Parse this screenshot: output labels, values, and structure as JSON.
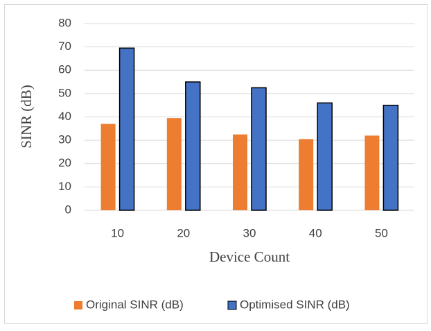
{
  "chart_data": {
    "type": "bar",
    "x_label": "Device Count",
    "y_label": "SINR (dB)",
    "categories": [
      10,
      20,
      30,
      40,
      50
    ],
    "series": [
      {
        "name": "Original SINR (dB)",
        "color": "#ed7d31",
        "values": [
          37,
          39.5,
          32.5,
          30.5,
          32
        ]
      },
      {
        "name": "Optimised SINR (dB)",
        "color": "#4472c4",
        "edgecolor": "#000000",
        "values": [
          69.5,
          55,
          52.5,
          46,
          45
        ]
      }
    ],
    "ylim": [
      0,
      80
    ],
    "yticks": [
      0,
      10,
      20,
      30,
      40,
      50,
      60,
      70,
      80
    ],
    "grid": true,
    "legend": "bottom"
  }
}
